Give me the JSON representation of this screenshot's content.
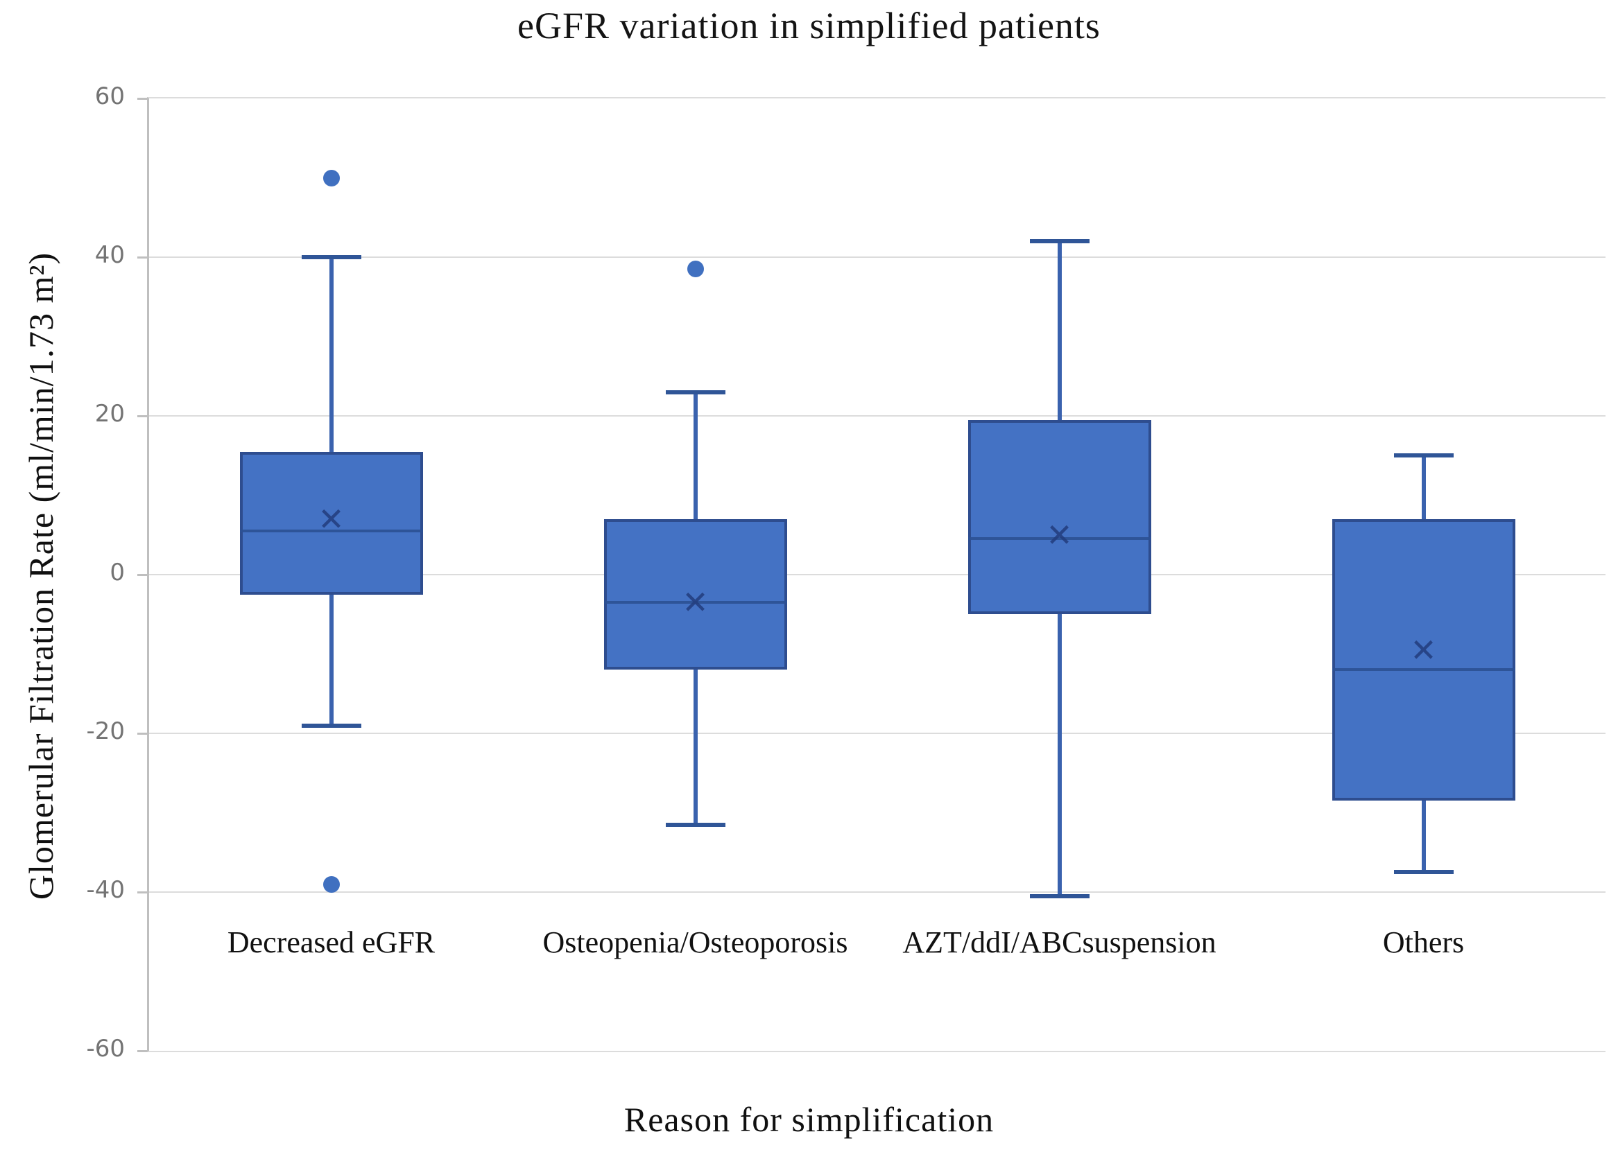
{
  "chart_data": {
    "type": "boxplot",
    "title": "eGFR variation in simplified patients",
    "xlabel": "Reason for simplification",
    "ylabel": "Glomerular Filtration Rate (ml/min/1.73 m²)",
    "ylim": [
      -60,
      60
    ],
    "yticks": [
      60,
      40,
      20,
      0,
      -20,
      -40,
      -60
    ],
    "grid": true,
    "legend": "none",
    "categories": [
      "Decreased eGFR",
      "Osteopenia/Osteoporosis",
      "AZT/ddI/ABCsuspension",
      "Others"
    ],
    "series": [
      {
        "category": "Decreased eGFR",
        "whisker_low": -19,
        "q1": -2.5,
        "median": 5.5,
        "q3": 15.5,
        "whisker_high": 40,
        "mean": 7,
        "outliers": [
          50,
          -39
        ]
      },
      {
        "category": "Osteopenia/Osteoporosis",
        "whisker_low": -31.5,
        "q1": -12,
        "median": -3.5,
        "q3": 7,
        "whisker_high": 23,
        "mean": -3.5,
        "outliers": [
          38.5
        ]
      },
      {
        "category": "AZT/ddI/ABCsuspension",
        "whisker_low": -40.5,
        "q1": -5,
        "median": 4.5,
        "q3": 19.5,
        "whisker_high": 42,
        "mean": 5,
        "outliers": []
      },
      {
        "category": "Others",
        "whisker_low": -37.5,
        "q1": -28.5,
        "median": -12,
        "q3": 7,
        "whisker_high": 15,
        "mean": -9.5,
        "outliers": []
      }
    ],
    "colors": {
      "box_fill": "#4472c4",
      "box_border": "#2e4d8f",
      "whisker": "#3a62ae",
      "cap": "#2f5597",
      "median": "#2c5193",
      "mean_marker": "#233d7d",
      "outlier": "#4070c0",
      "gridline": "#dcdcdc",
      "axis_line": "#bfbfbf",
      "tick_text": "#737373",
      "label_text": "#111111"
    }
  }
}
